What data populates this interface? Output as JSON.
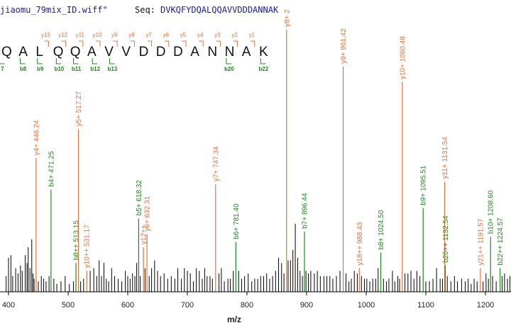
{
  "header": {
    "filename": "jiaomu_79mix_ID.wiff\"",
    "seq_label": "Seq:",
    "sequence": "DVKQFYDQALQQAVVDDDANNAK"
  },
  "sequence_map": {
    "residues": [
      "Q",
      "A",
      "L",
      "Q",
      "Q",
      "A",
      "V",
      "V",
      "D",
      "D",
      "D",
      "A",
      "N",
      "N",
      "A",
      "K"
    ],
    "y_ions": [
      "y13",
      "y12",
      "y11",
      "y10",
      "y9",
      "y8",
      "y7",
      "y6",
      "y5",
      "y4",
      "y3",
      "y2",
      "y1"
    ],
    "b_ions": [
      "7",
      "b8",
      "b9",
      "b10",
      "b11",
      "b12",
      "b13",
      "b20",
      "b22"
    ]
  },
  "chart_data": {
    "type": "bar",
    "title": "",
    "xlabel": "m/z",
    "ylabel": "",
    "xlim": [
      395,
      1245
    ],
    "ylim": [
      0,
      100
    ],
    "xticks": [
      400,
      500,
      600,
      700,
      800,
      900,
      1000,
      1100,
      1200
    ],
    "colors": {
      "y": "#e8703a",
      "b": "#1e8a1e",
      "unannotated": "#000000"
    },
    "annotated_peaks": [
      {
        "mz": 446.24,
        "intensity": 51,
        "type": "y",
        "label": "y4+ 446.24"
      },
      {
        "mz": 471.25,
        "intensity": 39,
        "type": "b",
        "label": "b4+ 471.25"
      },
      {
        "mz": 513.15,
        "intensity": 11,
        "type": "b",
        "label": "b8++ 513.15"
      },
      {
        "mz": 517.27,
        "intensity": 62,
        "type": "y",
        "label": "y5+ 517.27"
      },
      {
        "mz": 531.17,
        "intensity": 8,
        "type": "y",
        "label": "y10++ 531.17"
      },
      {
        "mz": 618.32,
        "intensity": 28,
        "type": "b",
        "label": "b5+ 618.32"
      },
      {
        "mz": 626.4,
        "intensity": 17,
        "type": "y",
        "label": "y12++"
      },
      {
        "mz": 632.31,
        "intensity": 22,
        "type": "y",
        "label": "y6+ 632.31"
      },
      {
        "mz": 747.34,
        "intensity": 41,
        "type": "y",
        "label": "y7+ 747.34"
      },
      {
        "mz": 781.4,
        "intensity": 19,
        "type": "b",
        "label": "b6+ 781.40"
      },
      {
        "mz": 866.4,
        "intensity": 100,
        "type": "y",
        "label": "y8+ 2"
      },
      {
        "mz": 896.44,
        "intensity": 23,
        "type": "b",
        "label": "b7+ 896.44"
      },
      {
        "mz": 961.42,
        "intensity": 86,
        "type": "y",
        "label": "y9+ 961.42"
      },
      {
        "mz": 988.43,
        "intensity": 9,
        "type": "y",
        "label": "y18++ 988.43"
      },
      {
        "mz": 1024.5,
        "intensity": 15,
        "type": "b",
        "label": "b8+ 1024.50"
      },
      {
        "mz": 1060.48,
        "intensity": 80,
        "type": "y",
        "label": "y10+ 1060.48"
      },
      {
        "mz": 1095.51,
        "intensity": 32,
        "type": "b",
        "label": "b9+ 1095.51"
      },
      {
        "mz": 1131.54,
        "intensity": 42,
        "type": "y",
        "label": "y11+ 1131.54"
      },
      {
        "mz": 1132.54,
        "intensity": 10,
        "type": "b",
        "label": "b20++ 1132.54"
      },
      {
        "mz": 1191.57,
        "intensity": 9,
        "type": "y",
        "label": "y21++ 1191.57"
      },
      {
        "mz": 1208.6,
        "intensity": 21,
        "type": "b",
        "label": "b10+ 1208.60"
      },
      {
        "mz": 1224.57,
        "intensity": 9,
        "type": "b",
        "label": "b22++ 1224.57"
      }
    ],
    "unannotated_peaks": [
      [
        396,
        6
      ],
      [
        400,
        13
      ],
      [
        404,
        14
      ],
      [
        407,
        6
      ],
      [
        412,
        9
      ],
      [
        416,
        7
      ],
      [
        420,
        10
      ],
      [
        423,
        8
      ],
      [
        428,
        14
      ],
      [
        431,
        11
      ],
      [
        433,
        17
      ],
      [
        436,
        9
      ],
      [
        439,
        20
      ],
      [
        441,
        7
      ],
      [
        443,
        5
      ],
      [
        450,
        4
      ],
      [
        455,
        6
      ],
      [
        459,
        5
      ],
      [
        463,
        4
      ],
      [
        468,
        6
      ],
      [
        476,
        5
      ],
      [
        481,
        3
      ],
      [
        488,
        4
      ],
      [
        495,
        6
      ],
      [
        502,
        3
      ],
      [
        509,
        4
      ],
      [
        521,
        4
      ],
      [
        526,
        5
      ],
      [
        537,
        8
      ],
      [
        543,
        9
      ],
      [
        548,
        6
      ],
      [
        552,
        12
      ],
      [
        556,
        6
      ],
      [
        560,
        11
      ],
      [
        564,
        5
      ],
      [
        568,
        4
      ],
      [
        573,
        9
      ],
      [
        578,
        6
      ],
      [
        584,
        5
      ],
      [
        590,
        4
      ],
      [
        596,
        8
      ],
      [
        600,
        6
      ],
      [
        604,
        5
      ],
      [
        608,
        7
      ],
      [
        612,
        6
      ],
      [
        615,
        11
      ],
      [
        621,
        6
      ],
      [
        629,
        9
      ],
      [
        636,
        6
      ],
      [
        640,
        9
      ],
      [
        645,
        12
      ],
      [
        650,
        8
      ],
      [
        655,
        6
      ],
      [
        661,
        7
      ],
      [
        667,
        5
      ],
      [
        673,
        6
      ],
      [
        679,
        5
      ],
      [
        684,
        9
      ],
      [
        690,
        5
      ],
      [
        695,
        9
      ],
      [
        700,
        8
      ],
      [
        705,
        7
      ],
      [
        710,
        4
      ],
      [
        715,
        9
      ],
      [
        720,
        8
      ],
      [
        725,
        5
      ],
      [
        729,
        9
      ],
      [
        733,
        6
      ],
      [
        738,
        6
      ],
      [
        742,
        5
      ],
      [
        753,
        7
      ],
      [
        757,
        9
      ],
      [
        762,
        4
      ],
      [
        768,
        5
      ],
      [
        772,
        5
      ],
      [
        777,
        8
      ],
      [
        786,
        8
      ],
      [
        791,
        5
      ],
      [
        796,
        6
      ],
      [
        802,
        7
      ],
      [
        808,
        4
      ],
      [
        813,
        5
      ],
      [
        818,
        5
      ],
      [
        823,
        6
      ],
      [
        828,
        6
      ],
      [
        833,
        7
      ],
      [
        838,
        5
      ],
      [
        843,
        6
      ],
      [
        848,
        8
      ],
      [
        853,
        13
      ],
      [
        858,
        11
      ],
      [
        862,
        7
      ],
      [
        869,
        12
      ],
      [
        873,
        12
      ],
      [
        877,
        16
      ],
      [
        881,
        26
      ],
      [
        885,
        13
      ],
      [
        889,
        8
      ],
      [
        893,
        6
      ],
      [
        899,
        8
      ],
      [
        903,
        7
      ],
      [
        907,
        8
      ],
      [
        913,
        7
      ],
      [
        918,
        8
      ],
      [
        923,
        6
      ],
      [
        929,
        6
      ],
      [
        934,
        6
      ],
      [
        939,
        6
      ],
      [
        944,
        5
      ],
      [
        950,
        6
      ],
      [
        956,
        8
      ],
      [
        966,
        7
      ],
      [
        971,
        4
      ],
      [
        975,
        5
      ],
      [
        980,
        8
      ],
      [
        985,
        7
      ],
      [
        992,
        6
      ],
      [
        997,
        5
      ],
      [
        1001,
        5
      ],
      [
        1006,
        4
      ],
      [
        1011,
        5
      ],
      [
        1016,
        5
      ],
      [
        1020,
        9
      ],
      [
        1029,
        5
      ],
      [
        1034,
        4
      ],
      [
        1038,
        5
      ],
      [
        1044,
        8
      ],
      [
        1048,
        4
      ],
      [
        1053,
        6
      ],
      [
        1056,
        5
      ],
      [
        1065,
        7
      ],
      [
        1070,
        7
      ],
      [
        1075,
        8
      ],
      [
        1080,
        5
      ],
      [
        1085,
        8
      ],
      [
        1090,
        6
      ],
      [
        1100,
        4
      ],
      [
        1106,
        4
      ],
      [
        1112,
        5
      ],
      [
        1118,
        9
      ],
      [
        1124,
        5
      ],
      [
        1128,
        5
      ],
      [
        1136,
        6
      ],
      [
        1142,
        4
      ],
      [
        1148,
        6
      ],
      [
        1153,
        4
      ],
      [
        1160,
        5
      ],
      [
        1166,
        4
      ],
      [
        1171,
        5
      ],
      [
        1176,
        3
      ],
      [
        1181,
        5
      ],
      [
        1186,
        4
      ],
      [
        1196,
        4
      ],
      [
        1201,
        7
      ],
      [
        1205,
        5
      ],
      [
        1212,
        6
      ],
      [
        1218,
        4
      ],
      [
        1228,
        6
      ],
      [
        1232,
        7
      ],
      [
        1237,
        5
      ],
      [
        1241,
        6
      ]
    ]
  }
}
